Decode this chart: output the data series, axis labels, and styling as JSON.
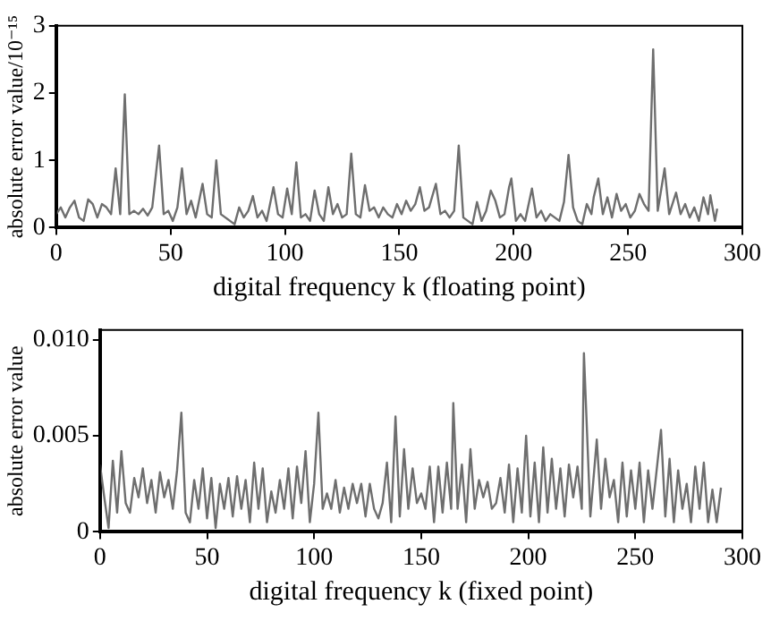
{
  "chart_data": [
    {
      "type": "line",
      "xlabel": "digital frequency k (floating point)",
      "ylabel": "absolute error value/10⁻¹⁵",
      "xlim": [
        0,
        300
      ],
      "ylim": [
        0,
        3
      ],
      "xticks": [
        0,
        50,
        100,
        150,
        200,
        250,
        300
      ],
      "yticks": [
        0,
        1,
        2,
        3
      ],
      "grid": false,
      "legend": false,
      "marker": "none",
      "line_style": "solid",
      "series": [
        {
          "color": "#6e6e6e",
          "x": [
            0,
            2,
            4,
            6,
            8,
            10,
            12,
            14,
            16,
            18,
            20,
            22,
            24,
            26,
            28,
            30,
            32,
            34,
            36,
            38,
            40,
            42,
            45,
            47,
            49,
            51,
            53,
            55,
            57,
            59,
            61,
            64,
            66,
            68,
            70,
            72,
            74,
            76,
            78,
            80,
            82,
            84,
            86,
            88,
            90,
            92,
            95,
            97,
            99,
            101,
            103,
            105,
            107,
            109,
            111,
            113,
            115,
            117,
            119,
            121,
            123,
            125,
            127,
            129,
            131,
            133,
            135,
            137,
            139,
            141,
            143,
            145,
            147,
            149,
            151,
            153,
            155,
            157,
            159,
            161,
            163,
            166,
            168,
            170,
            172,
            174,
            176,
            178,
            180,
            182,
            184,
            186,
            188,
            190,
            192,
            194,
            196,
            198,
            199,
            201,
            203,
            205,
            208,
            210,
            212,
            214,
            216,
            218,
            220,
            222,
            224,
            226,
            228,
            230,
            232,
            234,
            235,
            237,
            239,
            241,
            243,
            245,
            247,
            249,
            251,
            253,
            255,
            257,
            259,
            261,
            263,
            266,
            268,
            271,
            273,
            275,
            277,
            279,
            281,
            283,
            285,
            286,
            288,
            289
          ],
          "values": [
            0.2,
            0.3,
            0.15,
            0.3,
            0.4,
            0.15,
            0.1,
            0.42,
            0.35,
            0.15,
            0.35,
            0.3,
            0.2,
            0.88,
            0.2,
            1.98,
            0.2,
            0.25,
            0.2,
            0.28,
            0.18,
            0.3,
            1.22,
            0.2,
            0.25,
            0.1,
            0.3,
            0.88,
            0.2,
            0.4,
            0.15,
            0.65,
            0.2,
            0.15,
            1.0,
            0.2,
            0.15,
            0.1,
            0.05,
            0.3,
            0.15,
            0.25,
            0.47,
            0.15,
            0.25,
            0.1,
            0.6,
            0.2,
            0.15,
            0.58,
            0.2,
            0.97,
            0.15,
            0.2,
            0.1,
            0.55,
            0.2,
            0.1,
            0.6,
            0.2,
            0.35,
            0.15,
            0.2,
            1.1,
            0.2,
            0.15,
            0.63,
            0.25,
            0.3,
            0.15,
            0.3,
            0.2,
            0.15,
            0.35,
            0.2,
            0.4,
            0.25,
            0.35,
            0.6,
            0.25,
            0.3,
            0.65,
            0.2,
            0.25,
            0.15,
            0.25,
            1.22,
            0.15,
            0.1,
            0.05,
            0.38,
            0.1,
            0.25,
            0.55,
            0.4,
            0.15,
            0.2,
            0.6,
            0.73,
            0.1,
            0.2,
            0.1,
            0.58,
            0.15,
            0.25,
            0.1,
            0.2,
            0.15,
            0.1,
            0.38,
            1.08,
            0.3,
            0.1,
            0.05,
            0.35,
            0.2,
            0.45,
            0.73,
            0.2,
            0.45,
            0.15,
            0.5,
            0.25,
            0.35,
            0.15,
            0.25,
            0.5,
            0.35,
            0.25,
            2.65,
            0.25,
            0.88,
            0.2,
            0.52,
            0.2,
            0.35,
            0.15,
            0.3,
            0.1,
            0.45,
            0.2,
            0.48,
            0.1,
            0.28
          ]
        }
      ]
    },
    {
      "type": "line",
      "xlabel": "digital frequency k (fixed point)",
      "ylabel": "absolute error value",
      "xlim": [
        0,
        300
      ],
      "ylim": [
        0,
        0.0105
      ],
      "xticks": [
        0,
        50,
        100,
        150,
        200,
        250,
        300
      ],
      "yticks": [
        {
          "value": 0,
          "label": "0"
        },
        0.005,
        {
          "value": 0.01,
          "label": "0.010"
        }
      ],
      "grid": false,
      "legend": false,
      "marker": "none",
      "line_style": "solid",
      "series": [
        {
          "color": "#6e6e6e",
          "x": [
            0,
            2,
            4,
            6,
            8,
            10,
            12,
            14,
            16,
            18,
            20,
            22,
            24,
            26,
            28,
            30,
            32,
            34,
            36,
            38,
            40,
            42,
            44,
            46,
            48,
            50,
            52,
            54,
            56,
            58,
            60,
            62,
            64,
            66,
            68,
            70,
            72,
            74,
            76,
            78,
            80,
            82,
            84,
            86,
            88,
            90,
            92,
            94,
            96,
            98,
            100,
            102,
            104,
            106,
            108,
            110,
            112,
            114,
            116,
            118,
            120,
            122,
            124,
            126,
            128,
            130,
            132,
            134,
            136,
            138,
            140,
            142,
            144,
            146,
            148,
            150,
            152,
            154,
            156,
            158,
            160,
            162,
            164,
            165,
            167,
            169,
            171,
            173,
            175,
            177,
            179,
            181,
            183,
            185,
            187,
            189,
            191,
            193,
            195,
            197,
            199,
            201,
            203,
            205,
            207,
            209,
            211,
            213,
            215,
            217,
            219,
            221,
            223,
            225,
            226,
            229,
            232,
            234,
            236,
            238,
            240,
            242,
            244,
            246,
            248,
            250,
            252,
            254,
            256,
            258,
            262,
            264,
            266,
            268,
            270,
            272,
            274,
            276,
            278,
            280,
            282,
            284,
            286,
            288,
            290
          ],
          "values": [
            0.0035,
            0.0018,
            0.0002,
            0.0037,
            0.001,
            0.0042,
            0.0015,
            0.001,
            0.0028,
            0.0018,
            0.0033,
            0.0015,
            0.0027,
            0.001,
            0.0031,
            0.0018,
            0.0027,
            0.0012,
            0.0032,
            0.0062,
            0.001,
            0.0005,
            0.0027,
            0.0012,
            0.0033,
            0.0007,
            0.0028,
            0.0002,
            0.0025,
            0.0012,
            0.0028,
            0.0008,
            0.0029,
            0.0012,
            0.0027,
            0.0005,
            0.0036,
            0.0012,
            0.0033,
            0.0005,
            0.0021,
            0.001,
            0.0027,
            0.0012,
            0.0033,
            0.0007,
            0.0034,
            0.0015,
            0.0042,
            0.0005,
            0.0025,
            0.0062,
            0.0012,
            0.002,
            0.0012,
            0.0027,
            0.001,
            0.0023,
            0.0012,
            0.0025,
            0.0015,
            0.0025,
            0.0008,
            0.0025,
            0.0012,
            0.0007,
            0.0015,
            0.0036,
            0.0005,
            0.006,
            0.0008,
            0.0043,
            0.0012,
            0.0033,
            0.0015,
            0.002,
            0.0012,
            0.0034,
            0.0005,
            0.0034,
            0.001,
            0.0036,
            0.0012,
            0.0067,
            0.0012,
            0.0035,
            0.0005,
            0.0043,
            0.0012,
            0.0027,
            0.0018,
            0.0026,
            0.0012,
            0.0015,
            0.0028,
            0.001,
            0.0035,
            0.0005,
            0.0033,
            0.001,
            0.005,
            0.0008,
            0.0036,
            0.0005,
            0.0044,
            0.001,
            0.0038,
            0.0012,
            0.0033,
            0.0008,
            0.0035,
            0.0018,
            0.0034,
            0.0012,
            0.0093,
            0.0008,
            0.0048,
            0.0012,
            0.0038,
            0.0018,
            0.0027,
            0.0005,
            0.0036,
            0.0008,
            0.0032,
            0.0012,
            0.0036,
            0.0005,
            0.0032,
            0.0012,
            0.0053,
            0.0008,
            0.0038,
            0.0005,
            0.0032,
            0.0012,
            0.0025,
            0.0005,
            0.0034,
            0.0012,
            0.0036,
            0.0005,
            0.0022,
            0.0005,
            0.0023
          ]
        }
      ]
    }
  ]
}
